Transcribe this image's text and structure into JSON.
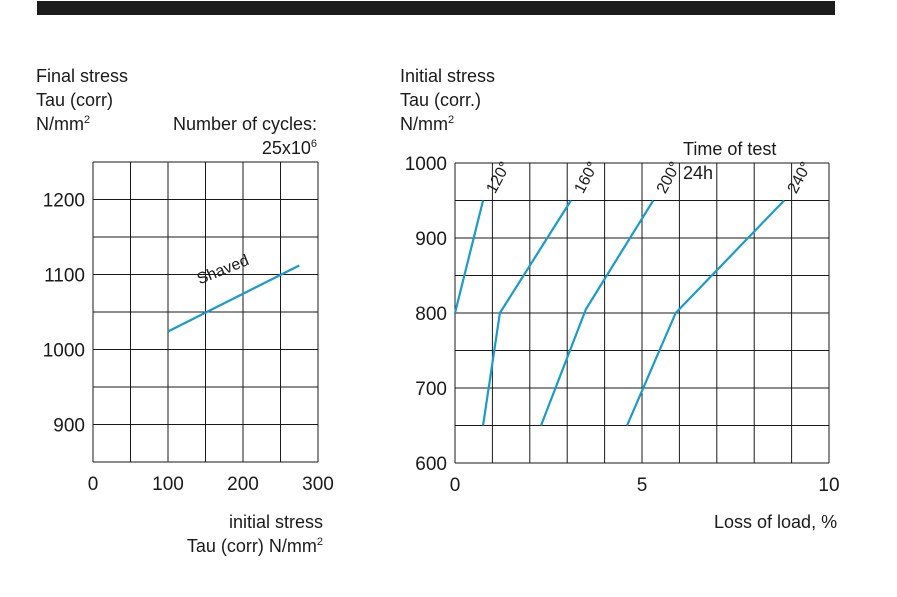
{
  "chart_data": [
    {
      "type": "line",
      "ylabel_lines": [
        "Final stress",
        "Tau (corr)",
        "N/mm"
      ],
      "ylabel_unit_sup": "2",
      "annotation_lines": [
        "Number of cycles:",
        "25x10"
      ],
      "annotation_sup": "6",
      "xlabel_lines": [
        "initial stress",
        "Tau (corr) N/mm"
      ],
      "xlabel_unit_sup": "2",
      "xlim": [
        0,
        300
      ],
      "ylim": [
        850,
        1250
      ],
      "x_ticks": [
        0,
        100,
        200,
        300
      ],
      "y_ticks": [
        900,
        1000,
        1100,
        1200
      ],
      "x_tick_labels": [
        "0",
        "100",
        "200",
        "300"
      ],
      "y_tick_labels": [
        "900",
        "1000",
        "1100",
        "1200"
      ],
      "grid": true,
      "series": [
        {
          "name": "Shaved",
          "x": [
            100,
            275
          ],
          "y": [
            1024,
            1112
          ]
        }
      ]
    },
    {
      "type": "line",
      "ylabel_lines": [
        "Initial stress",
        "Tau (corr.)",
        "N/mm"
      ],
      "ylabel_unit_sup": "2",
      "annotation_lines": [
        "Time of test",
        "24h"
      ],
      "xlabel_lines": [
        "Loss of load, %"
      ],
      "xlim": [
        0,
        10
      ],
      "ylim": [
        600,
        1000
      ],
      "x_ticks": [
        0,
        5,
        10
      ],
      "y_ticks": [
        600,
        700,
        800,
        900,
        1000
      ],
      "x_tick_labels": [
        "0",
        "5",
        "10"
      ],
      "y_tick_labels": [
        "600",
        "700",
        "800",
        "900",
        "1000"
      ],
      "grid": true,
      "series": [
        {
          "name": "120°",
          "x": [
            0.0,
            0.75
          ],
          "y": [
            800,
            950
          ]
        },
        {
          "name": "160°",
          "x": [
            0.75,
            1.2,
            3.1
          ],
          "y": [
            650,
            800,
            950
          ]
        },
        {
          "name": "200°",
          "x": [
            2.3,
            3.5,
            5.3
          ],
          "y": [
            650,
            805,
            950
          ]
        },
        {
          "name": "240°",
          "x": [
            4.6,
            5.9,
            8.8
          ],
          "y": [
            650,
            800,
            950
          ]
        }
      ]
    }
  ],
  "colors": {
    "series": "#1a9bc9",
    "grid": "#1a1a1a",
    "top_bar": "#1c1c1c"
  }
}
